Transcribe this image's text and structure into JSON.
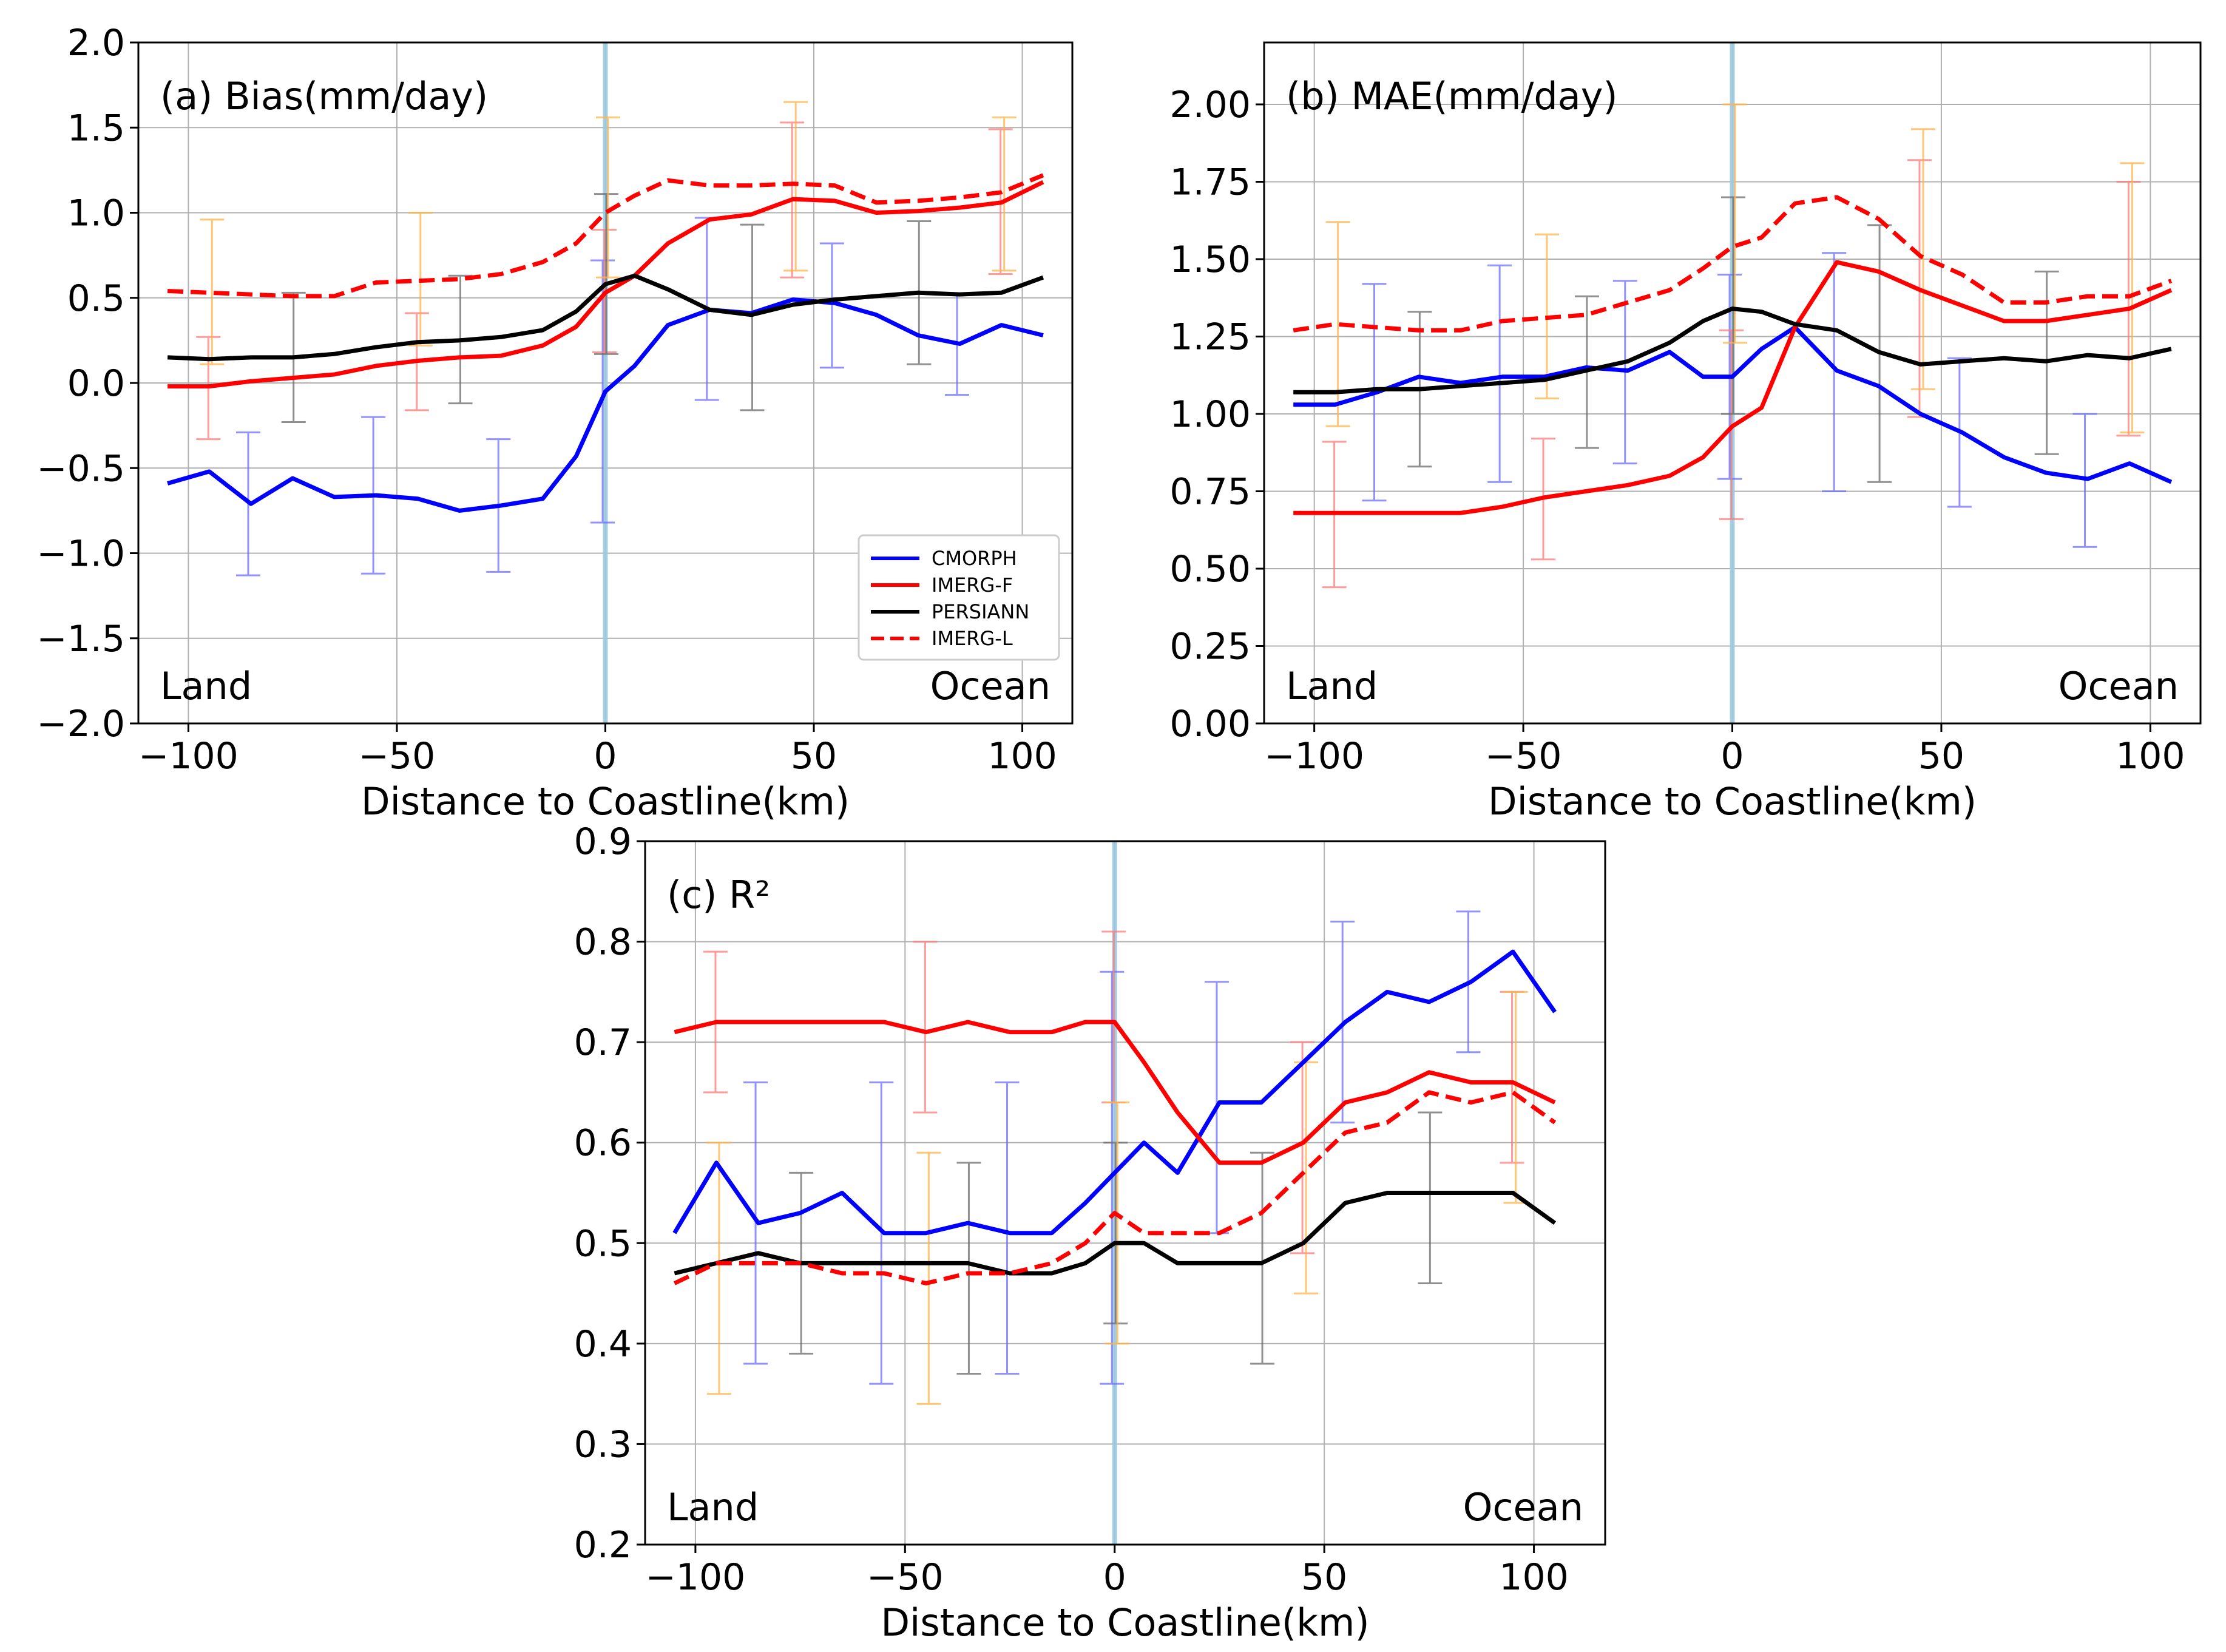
{
  "figure": {
    "coastline_color": "#9ecae1"
  },
  "chart_data": [
    {
      "type": "line",
      "id": "a",
      "title": "(a) Bias(mm/day)",
      "xlabel": "Distance to Coastline(km)",
      "ylabel": "",
      "xlim": [
        -112,
        112
      ],
      "ylim": [
        -2.0,
        2.0
      ],
      "xticks": [
        -100,
        -50,
        0,
        50,
        100
      ],
      "xtick_labels": [
        "−100",
        "−50",
        "0",
        "50",
        "100"
      ],
      "yticks": [
        -2.0,
        -1.5,
        -1.0,
        -0.5,
        0.0,
        0.5,
        1.0,
        1.5,
        2.0
      ],
      "ytick_labels": [
        "−2.0",
        "−1.5",
        "−1.0",
        "−0.5",
        "0.0",
        "0.5",
        "1.0",
        "1.5",
        "2.0"
      ],
      "grid": true,
      "legend": "lower-right",
      "land_label": "Land",
      "ocean_label": "Ocean",
      "x": [
        -105,
        -95,
        -85,
        -75,
        -65,
        -55,
        -45,
        -35,
        -25,
        -15,
        -7,
        0,
        7,
        15,
        25,
        35,
        45,
        55,
        65,
        75,
        85,
        95,
        105
      ],
      "series": [
        {
          "name": "CMORPH",
          "color": "#0000ff",
          "dash": false,
          "values": [
            -0.59,
            -0.52,
            -0.71,
            -0.56,
            -0.67,
            -0.66,
            -0.68,
            -0.75,
            -0.72,
            -0.68,
            -0.43,
            -0.05,
            0.1,
            0.34,
            0.43,
            0.41,
            0.49,
            0.47,
            0.4,
            0.28,
            0.23,
            0.34,
            0.28
          ],
          "errorbars": [
            {
              "x": -85,
              "low": -1.13,
              "high": -0.29
            },
            {
              "x": -55,
              "low": -1.12,
              "high": -0.2
            },
            {
              "x": -25,
              "low": -1.11,
              "high": -0.33
            },
            {
              "x": 0,
              "low": -0.82,
              "high": 0.72
            },
            {
              "x": 25,
              "low": -0.1,
              "high": 0.97
            },
            {
              "x": 55,
              "low": 0.09,
              "high": 0.82
            },
            {
              "x": 85,
              "low": -0.07,
              "high": 0.52
            }
          ]
        },
        {
          "name": "IMERG-F",
          "color": "#ff0000",
          "dash": false,
          "values": [
            -0.02,
            -0.02,
            0.01,
            0.03,
            0.05,
            0.1,
            0.13,
            0.15,
            0.16,
            0.22,
            0.33,
            0.53,
            0.63,
            0.82,
            0.96,
            0.99,
            1.08,
            1.07,
            1.0,
            1.01,
            1.03,
            1.06,
            1.18
          ],
          "errorbars": [
            {
              "x": -95,
              "low": -0.33,
              "high": 0.27
            },
            {
              "x": -45,
              "low": -0.16,
              "high": 0.41
            },
            {
              "x": 0,
              "low": 0.18,
              "high": 0.9
            },
            {
              "x": 45,
              "low": 0.62,
              "high": 1.53
            },
            {
              "x": 95,
              "low": 0.64,
              "high": 1.49
            }
          ]
        },
        {
          "name": "PERSIANN",
          "color": "#000000",
          "dash": false,
          "values": [
            0.15,
            0.14,
            0.15,
            0.15,
            0.17,
            0.21,
            0.24,
            0.25,
            0.27,
            0.31,
            0.42,
            0.58,
            0.63,
            0.55,
            0.43,
            0.4,
            0.46,
            0.49,
            0.51,
            0.53,
            0.52,
            0.53,
            0.62
          ],
          "errorbars": [
            {
              "x": -75,
              "low": -0.23,
              "high": 0.53
            },
            {
              "x": -35,
              "low": -0.12,
              "high": 0.63
            },
            {
              "x": 0,
              "low": 0.17,
              "high": 1.11
            },
            {
              "x": 35,
              "low": -0.16,
              "high": 0.93
            },
            {
              "x": 75,
              "low": 0.11,
              "high": 0.95
            }
          ]
        },
        {
          "name": "IMERG-L",
          "color": "#ff0000",
          "dash": true,
          "values": [
            0.54,
            0.53,
            0.52,
            0.51,
            0.51,
            0.59,
            0.6,
            0.61,
            0.64,
            0.71,
            0.82,
            1.0,
            1.1,
            1.19,
            1.16,
            1.16,
            1.17,
            1.16,
            1.06,
            1.07,
            1.09,
            1.12,
            1.22
          ],
          "errorbars": [
            {
              "x": -95,
              "low": 0.11,
              "high": 0.96
            },
            {
              "x": -45,
              "low": 0.22,
              "high": 1.0
            },
            {
              "x": 0,
              "low": 0.62,
              "high": 1.56
            },
            {
              "x": 45,
              "low": 0.66,
              "high": 1.65
            },
            {
              "x": 95,
              "low": 0.66,
              "high": 1.56
            }
          ]
        }
      ]
    },
    {
      "type": "line",
      "id": "b",
      "title": "(b) MAE(mm/day)",
      "xlabel": "Distance to Coastline(km)",
      "ylabel": "",
      "xlim": [
        -112,
        112
      ],
      "ylim": [
        0.0,
        2.2
      ],
      "xticks": [
        -100,
        -50,
        0,
        50,
        100
      ],
      "xtick_labels": [
        "−100",
        "−50",
        "0",
        "50",
        "100"
      ],
      "yticks": [
        0.0,
        0.25,
        0.5,
        0.75,
        1.0,
        1.25,
        1.5,
        1.75,
        2.0
      ],
      "ytick_labels": [
        "0.00",
        "0.25",
        "0.50",
        "0.75",
        "1.00",
        "1.25",
        "1.50",
        "1.75",
        "2.00"
      ],
      "grid": true,
      "legend": "none",
      "land_label": "Land",
      "ocean_label": "Ocean",
      "x": [
        -105,
        -95,
        -85,
        -75,
        -65,
        -55,
        -45,
        -35,
        -25,
        -15,
        -7,
        0,
        7,
        15,
        25,
        35,
        45,
        55,
        65,
        75,
        85,
        95,
        105
      ],
      "series": [
        {
          "name": "CMORPH",
          "color": "#0000ff",
          "dash": false,
          "values": [
            1.03,
            1.03,
            1.07,
            1.12,
            1.1,
            1.12,
            1.12,
            1.15,
            1.14,
            1.2,
            1.12,
            1.12,
            1.21,
            1.28,
            1.14,
            1.09,
            1.0,
            0.94,
            0.86,
            0.81,
            0.79,
            0.84,
            0.78
          ],
          "errorbars": [
            {
              "x": -85,
              "low": 0.72,
              "high": 1.42
            },
            {
              "x": -55,
              "low": 0.78,
              "high": 1.48
            },
            {
              "x": -25,
              "low": 0.84,
              "high": 1.43
            },
            {
              "x": 0,
              "low": 0.79,
              "high": 1.45
            },
            {
              "x": 25,
              "low": 0.75,
              "high": 1.52
            },
            {
              "x": 55,
              "low": 0.7,
              "high": 1.18
            },
            {
              "x": 85,
              "low": 0.57,
              "high": 1.0
            }
          ]
        },
        {
          "name": "IMERG-F",
          "color": "#ff0000",
          "dash": false,
          "values": [
            0.68,
            0.68,
            0.68,
            0.68,
            0.68,
            0.7,
            0.73,
            0.75,
            0.77,
            0.8,
            0.86,
            0.96,
            1.02,
            1.28,
            1.49,
            1.46,
            1.4,
            1.35,
            1.3,
            1.3,
            1.32,
            1.34,
            1.4
          ],
          "errorbars": [
            {
              "x": -95,
              "low": 0.44,
              "high": 0.91
            },
            {
              "x": -45,
              "low": 0.53,
              "high": 0.92
            },
            {
              "x": 0,
              "low": 0.66,
              "high": 1.27
            },
            {
              "x": 45,
              "low": 0.99,
              "high": 1.82
            },
            {
              "x": 95,
              "low": 0.93,
              "high": 1.75
            }
          ]
        },
        {
          "name": "PERSIANN",
          "color": "#000000",
          "dash": false,
          "values": [
            1.07,
            1.07,
            1.08,
            1.08,
            1.09,
            1.1,
            1.11,
            1.14,
            1.17,
            1.23,
            1.3,
            1.34,
            1.33,
            1.29,
            1.27,
            1.2,
            1.16,
            1.17,
            1.18,
            1.17,
            1.19,
            1.18,
            1.21
          ],
          "errorbars": [
            {
              "x": -75,
              "low": 0.83,
              "high": 1.33
            },
            {
              "x": -35,
              "low": 0.89,
              "high": 1.38
            },
            {
              "x": 0,
              "low": 1.0,
              "high": 1.7
            },
            {
              "x": 35,
              "low": 0.78,
              "high": 1.61
            },
            {
              "x": 75,
              "low": 0.87,
              "high": 1.46
            }
          ]
        },
        {
          "name": "IMERG-L",
          "color": "#ff0000",
          "dash": true,
          "values": [
            1.27,
            1.29,
            1.28,
            1.27,
            1.27,
            1.3,
            1.31,
            1.32,
            1.36,
            1.4,
            1.47,
            1.54,
            1.57,
            1.68,
            1.7,
            1.63,
            1.51,
            1.45,
            1.36,
            1.36,
            1.38,
            1.38,
            1.43
          ],
          "errorbars": [
            {
              "x": -95,
              "low": 0.96,
              "high": 1.62
            },
            {
              "x": -45,
              "low": 1.05,
              "high": 1.58
            },
            {
              "x": 0,
              "low": 1.23,
              "high": 2.0
            },
            {
              "x": 45,
              "low": 1.08,
              "high": 1.92
            },
            {
              "x": 95,
              "low": 0.94,
              "high": 1.81
            }
          ]
        }
      ]
    },
    {
      "type": "line",
      "id": "c",
      "title": "(c) R²",
      "xlabel": "Distance to Coastline(km)",
      "ylabel": "",
      "xlim": [
        -112,
        117
      ],
      "ylim": [
        0.2,
        0.9
      ],
      "xticks": [
        -100,
        -50,
        0,
        50,
        100
      ],
      "xtick_labels": [
        "−100",
        "−50",
        "0",
        "50",
        "100"
      ],
      "yticks": [
        0.2,
        0.3,
        0.4,
        0.5,
        0.6,
        0.7,
        0.8,
        0.9
      ],
      "ytick_labels": [
        "0.2",
        "0.3",
        "0.4",
        "0.5",
        "0.6",
        "0.7",
        "0.8",
        "0.9"
      ],
      "grid": true,
      "legend": "none",
      "land_label": "Land",
      "ocean_label": "Ocean",
      "x": [
        -105,
        -95,
        -85,
        -75,
        -65,
        -55,
        -45,
        -35,
        -25,
        -15,
        -7,
        0,
        7,
        15,
        25,
        35,
        45,
        55,
        65,
        75,
        85,
        95,
        105
      ],
      "series": [
        {
          "name": "CMORPH",
          "color": "#0000ff",
          "dash": false,
          "values": [
            0.51,
            0.58,
            0.52,
            0.53,
            0.55,
            0.51,
            0.51,
            0.52,
            0.51,
            0.51,
            0.54,
            0.57,
            0.6,
            0.57,
            0.64,
            0.64,
            0.68,
            0.72,
            0.75,
            0.74,
            0.76,
            0.79,
            0.73
          ],
          "errorbars": [
            {
              "x": -85,
              "low": 0.38,
              "high": 0.66
            },
            {
              "x": -55,
              "low": 0.36,
              "high": 0.66
            },
            {
              "x": -25,
              "low": 0.37,
              "high": 0.66
            },
            {
              "x": 0,
              "low": 0.36,
              "high": 0.77
            },
            {
              "x": 25,
              "low": 0.51,
              "high": 0.76
            },
            {
              "x": 55,
              "low": 0.62,
              "high": 0.82
            },
            {
              "x": 85,
              "low": 0.69,
              "high": 0.83
            }
          ]
        },
        {
          "name": "IMERG-F",
          "color": "#ff0000",
          "dash": false,
          "values": [
            0.71,
            0.72,
            0.72,
            0.72,
            0.72,
            0.72,
            0.71,
            0.72,
            0.71,
            0.71,
            0.72,
            0.72,
            0.68,
            0.63,
            0.58,
            0.58,
            0.6,
            0.64,
            0.65,
            0.67,
            0.66,
            0.66,
            0.64
          ],
          "errorbars": [
            {
              "x": -95,
              "low": 0.65,
              "high": 0.79
            },
            {
              "x": -45,
              "low": 0.63,
              "high": 0.8
            },
            {
              "x": 0,
              "low": 0.64,
              "high": 0.81
            },
            {
              "x": 45,
              "low": 0.49,
              "high": 0.7
            },
            {
              "x": 95,
              "low": 0.58,
              "high": 0.75
            }
          ]
        },
        {
          "name": "PERSIANN",
          "color": "#000000",
          "dash": false,
          "values": [
            0.47,
            0.48,
            0.49,
            0.48,
            0.48,
            0.48,
            0.48,
            0.48,
            0.47,
            0.47,
            0.48,
            0.5,
            0.5,
            0.48,
            0.48,
            0.48,
            0.5,
            0.54,
            0.55,
            0.55,
            0.55,
            0.55,
            0.52
          ],
          "errorbars": [
            {
              "x": -75,
              "low": 0.39,
              "high": 0.57
            },
            {
              "x": -35,
              "low": 0.37,
              "high": 0.58
            },
            {
              "x": 0,
              "low": 0.42,
              "high": 0.6
            },
            {
              "x": 35,
              "low": 0.38,
              "high": 0.59
            },
            {
              "x": 75,
              "low": 0.46,
              "high": 0.63
            }
          ]
        },
        {
          "name": "IMERG-L",
          "color": "#ff0000",
          "dash": true,
          "values": [
            0.46,
            0.48,
            0.48,
            0.48,
            0.47,
            0.47,
            0.46,
            0.47,
            0.47,
            0.48,
            0.5,
            0.53,
            0.51,
            0.51,
            0.51,
            0.53,
            0.57,
            0.61,
            0.62,
            0.65,
            0.64,
            0.65,
            0.62
          ],
          "errorbars": [
            {
              "x": -95,
              "low": 0.35,
              "high": 0.6
            },
            {
              "x": -45,
              "low": 0.34,
              "high": 0.59
            },
            {
              "x": 0,
              "low": 0.4,
              "high": 0.64
            },
            {
              "x": 45,
              "low": 0.45,
              "high": 0.68
            },
            {
              "x": 95,
              "low": 0.54,
              "high": 0.75
            }
          ]
        }
      ]
    }
  ]
}
